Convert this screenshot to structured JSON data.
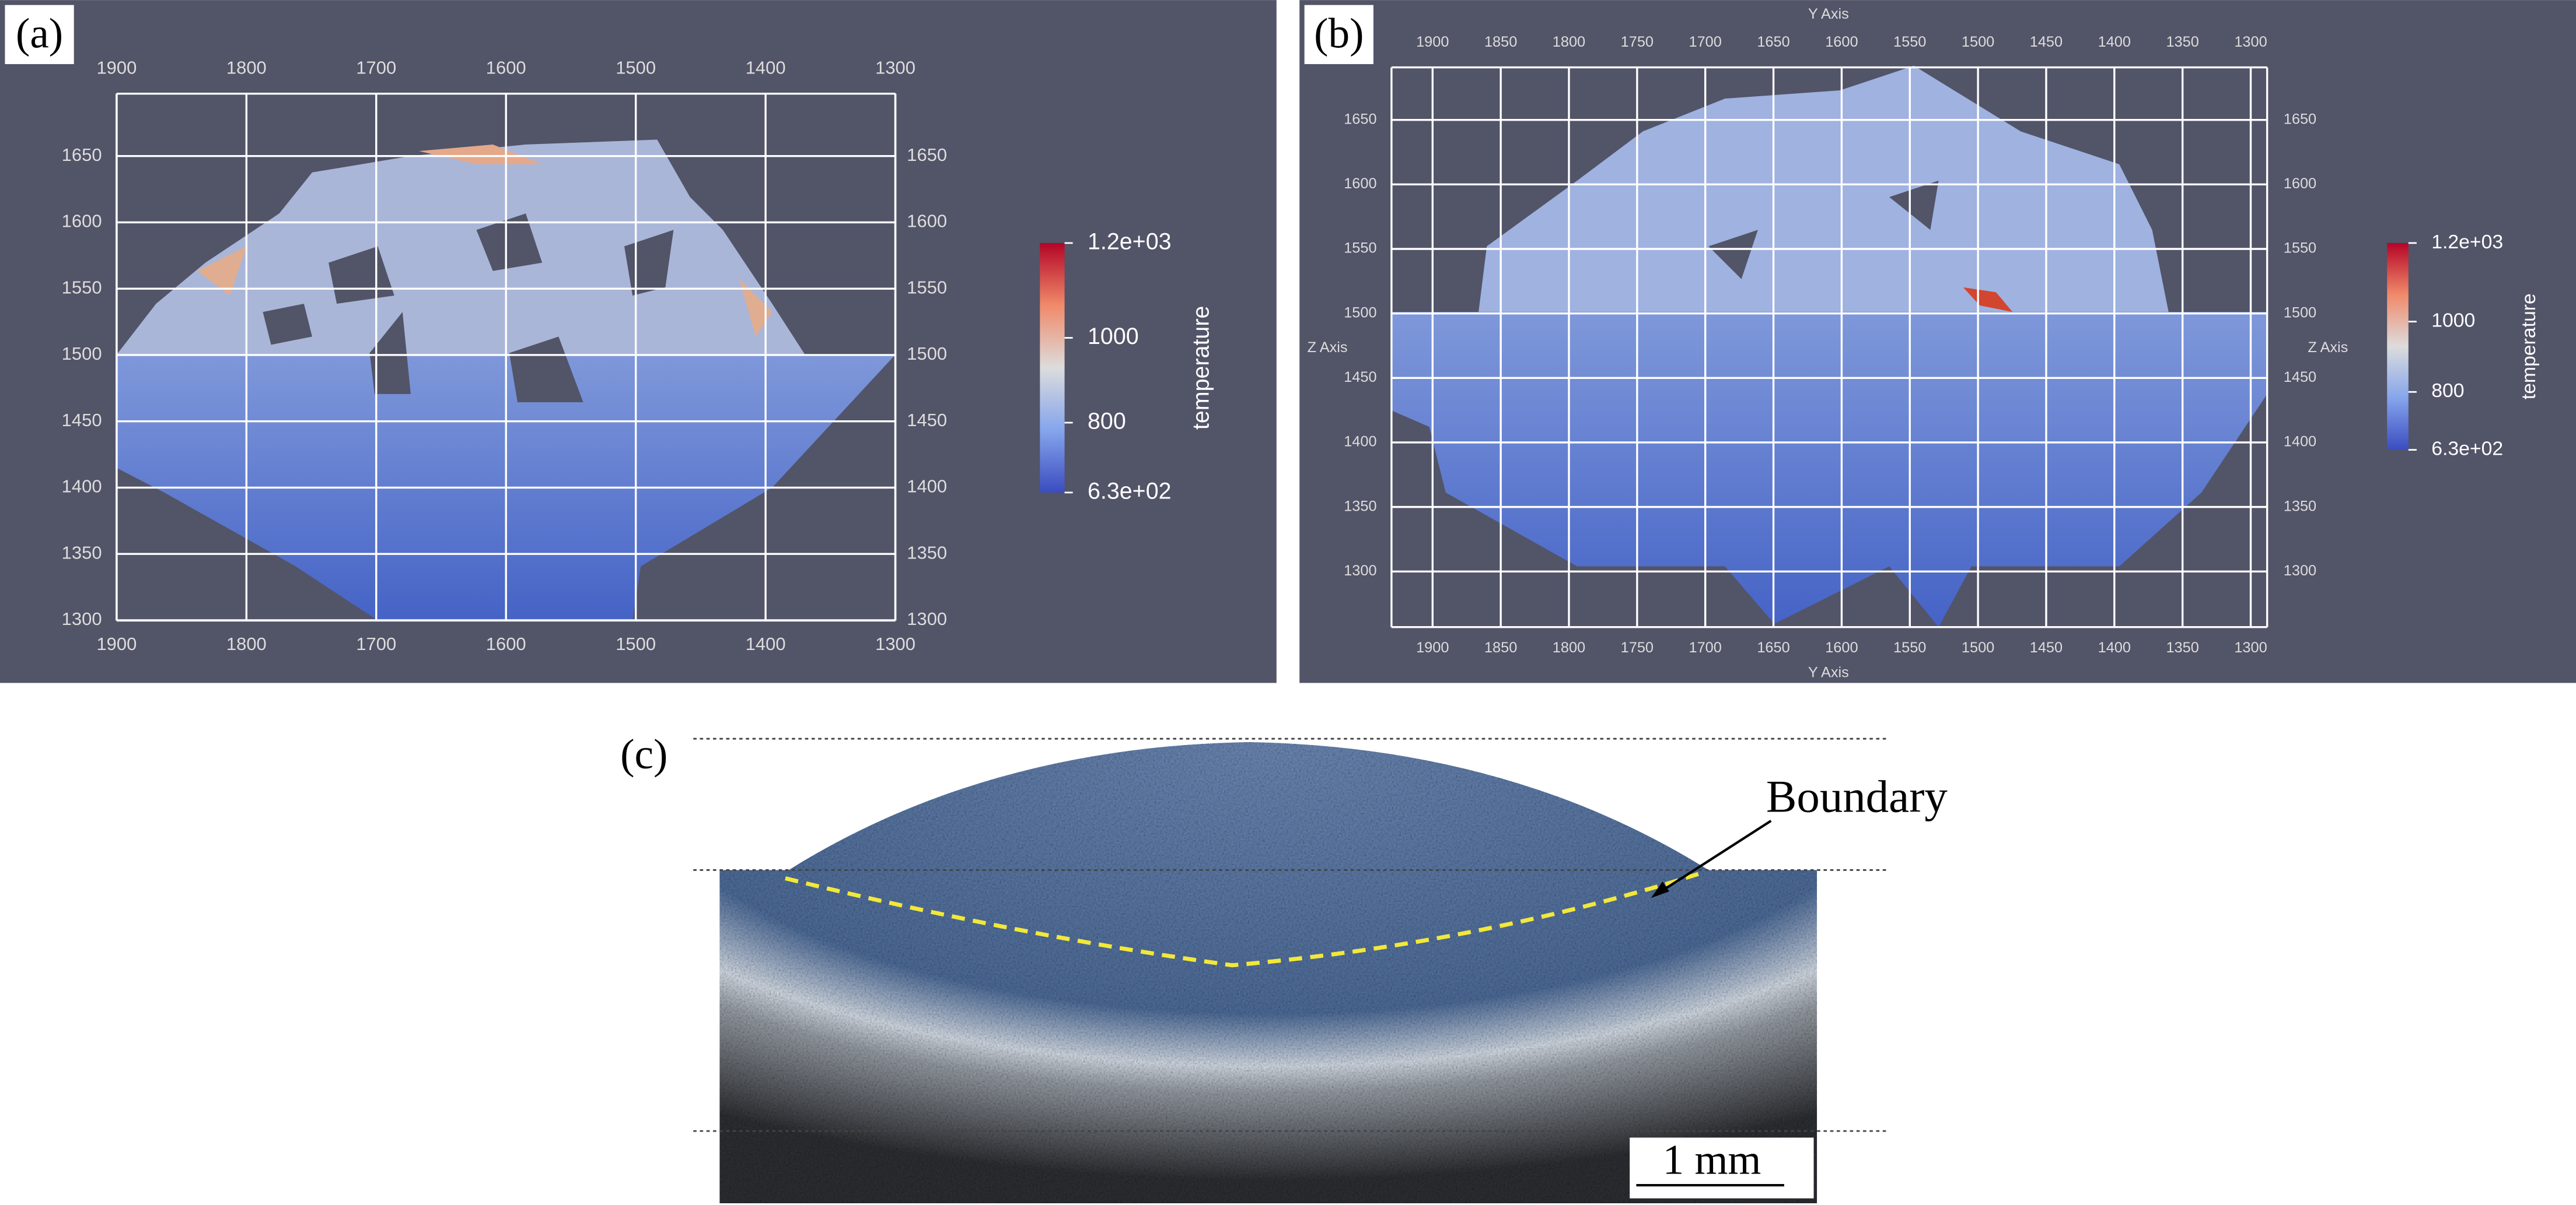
{
  "panels": [
    {
      "label": "(a)",
      "x_ticks": [
        1900,
        1800,
        1700,
        1600,
        1500,
        1400,
        1300
      ],
      "y_ticks": [
        1650,
        1600,
        1550,
        1500,
        1450,
        1400,
        1350,
        1300
      ],
      "colorbar": {
        "labels": [
          "1.2e+03",
          "1000",
          "800",
          "6.3e+02"
        ],
        "title": "temperature"
      }
    },
    {
      "label": "(b)",
      "x_axis_title": "Y Axis",
      "y_axis_title": "Z Axis",
      "x_ticks": [
        1900,
        1850,
        1800,
        1750,
        1700,
        1650,
        1600,
        1550,
        1500,
        1450,
        1400,
        1350,
        1300
      ],
      "y_ticks": [
        1650,
        1600,
        1550,
        1500,
        1450,
        1400,
        1350,
        1300
      ],
      "colorbar": {
        "labels": [
          "1.2e+03",
          "1000",
          "800",
          "6.3e+02"
        ],
        "title": "temperature"
      }
    }
  ],
  "micrograph": {
    "label": "(c)",
    "annotation": "Boundary",
    "scale_bar": "1 mm"
  }
}
